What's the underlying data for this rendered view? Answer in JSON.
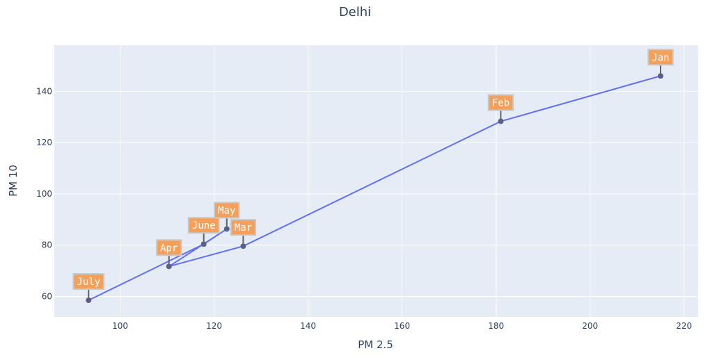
{
  "chart_data": {
    "type": "scatter",
    "mode": "lines+markers",
    "title": "Delhi",
    "xlabel": "PM 2.5",
    "ylabel": "PM 10",
    "xlim": [
      86,
      223
    ],
    "ylim": [
      52,
      158
    ],
    "xticks": [
      100,
      120,
      140,
      160,
      180,
      200,
      220
    ],
    "yticks": [
      60,
      80,
      100,
      120,
      140
    ],
    "grid": true,
    "points": [
      {
        "label": "Jan",
        "x": 215,
        "y": 146
      },
      {
        "label": "Feb",
        "x": 181,
        "y": 128.3
      },
      {
        "label": "Mar",
        "x": 126.2,
        "y": 79.6
      },
      {
        "label": "Apr",
        "x": 110.4,
        "y": 71.7
      },
      {
        "label": "May",
        "x": 122.7,
        "y": 86.3
      },
      {
        "label": "June",
        "x": 117.8,
        "y": 80.4
      },
      {
        "label": "July",
        "x": 93.3,
        "y": 58.5
      }
    ],
    "colors": {
      "line": "#636efa",
      "marker": "#5b5f82",
      "annotation_fill": "#f5a05a",
      "annotation_border": "#c8c8c8",
      "plot_bg": "#e5ecf6"
    }
  }
}
